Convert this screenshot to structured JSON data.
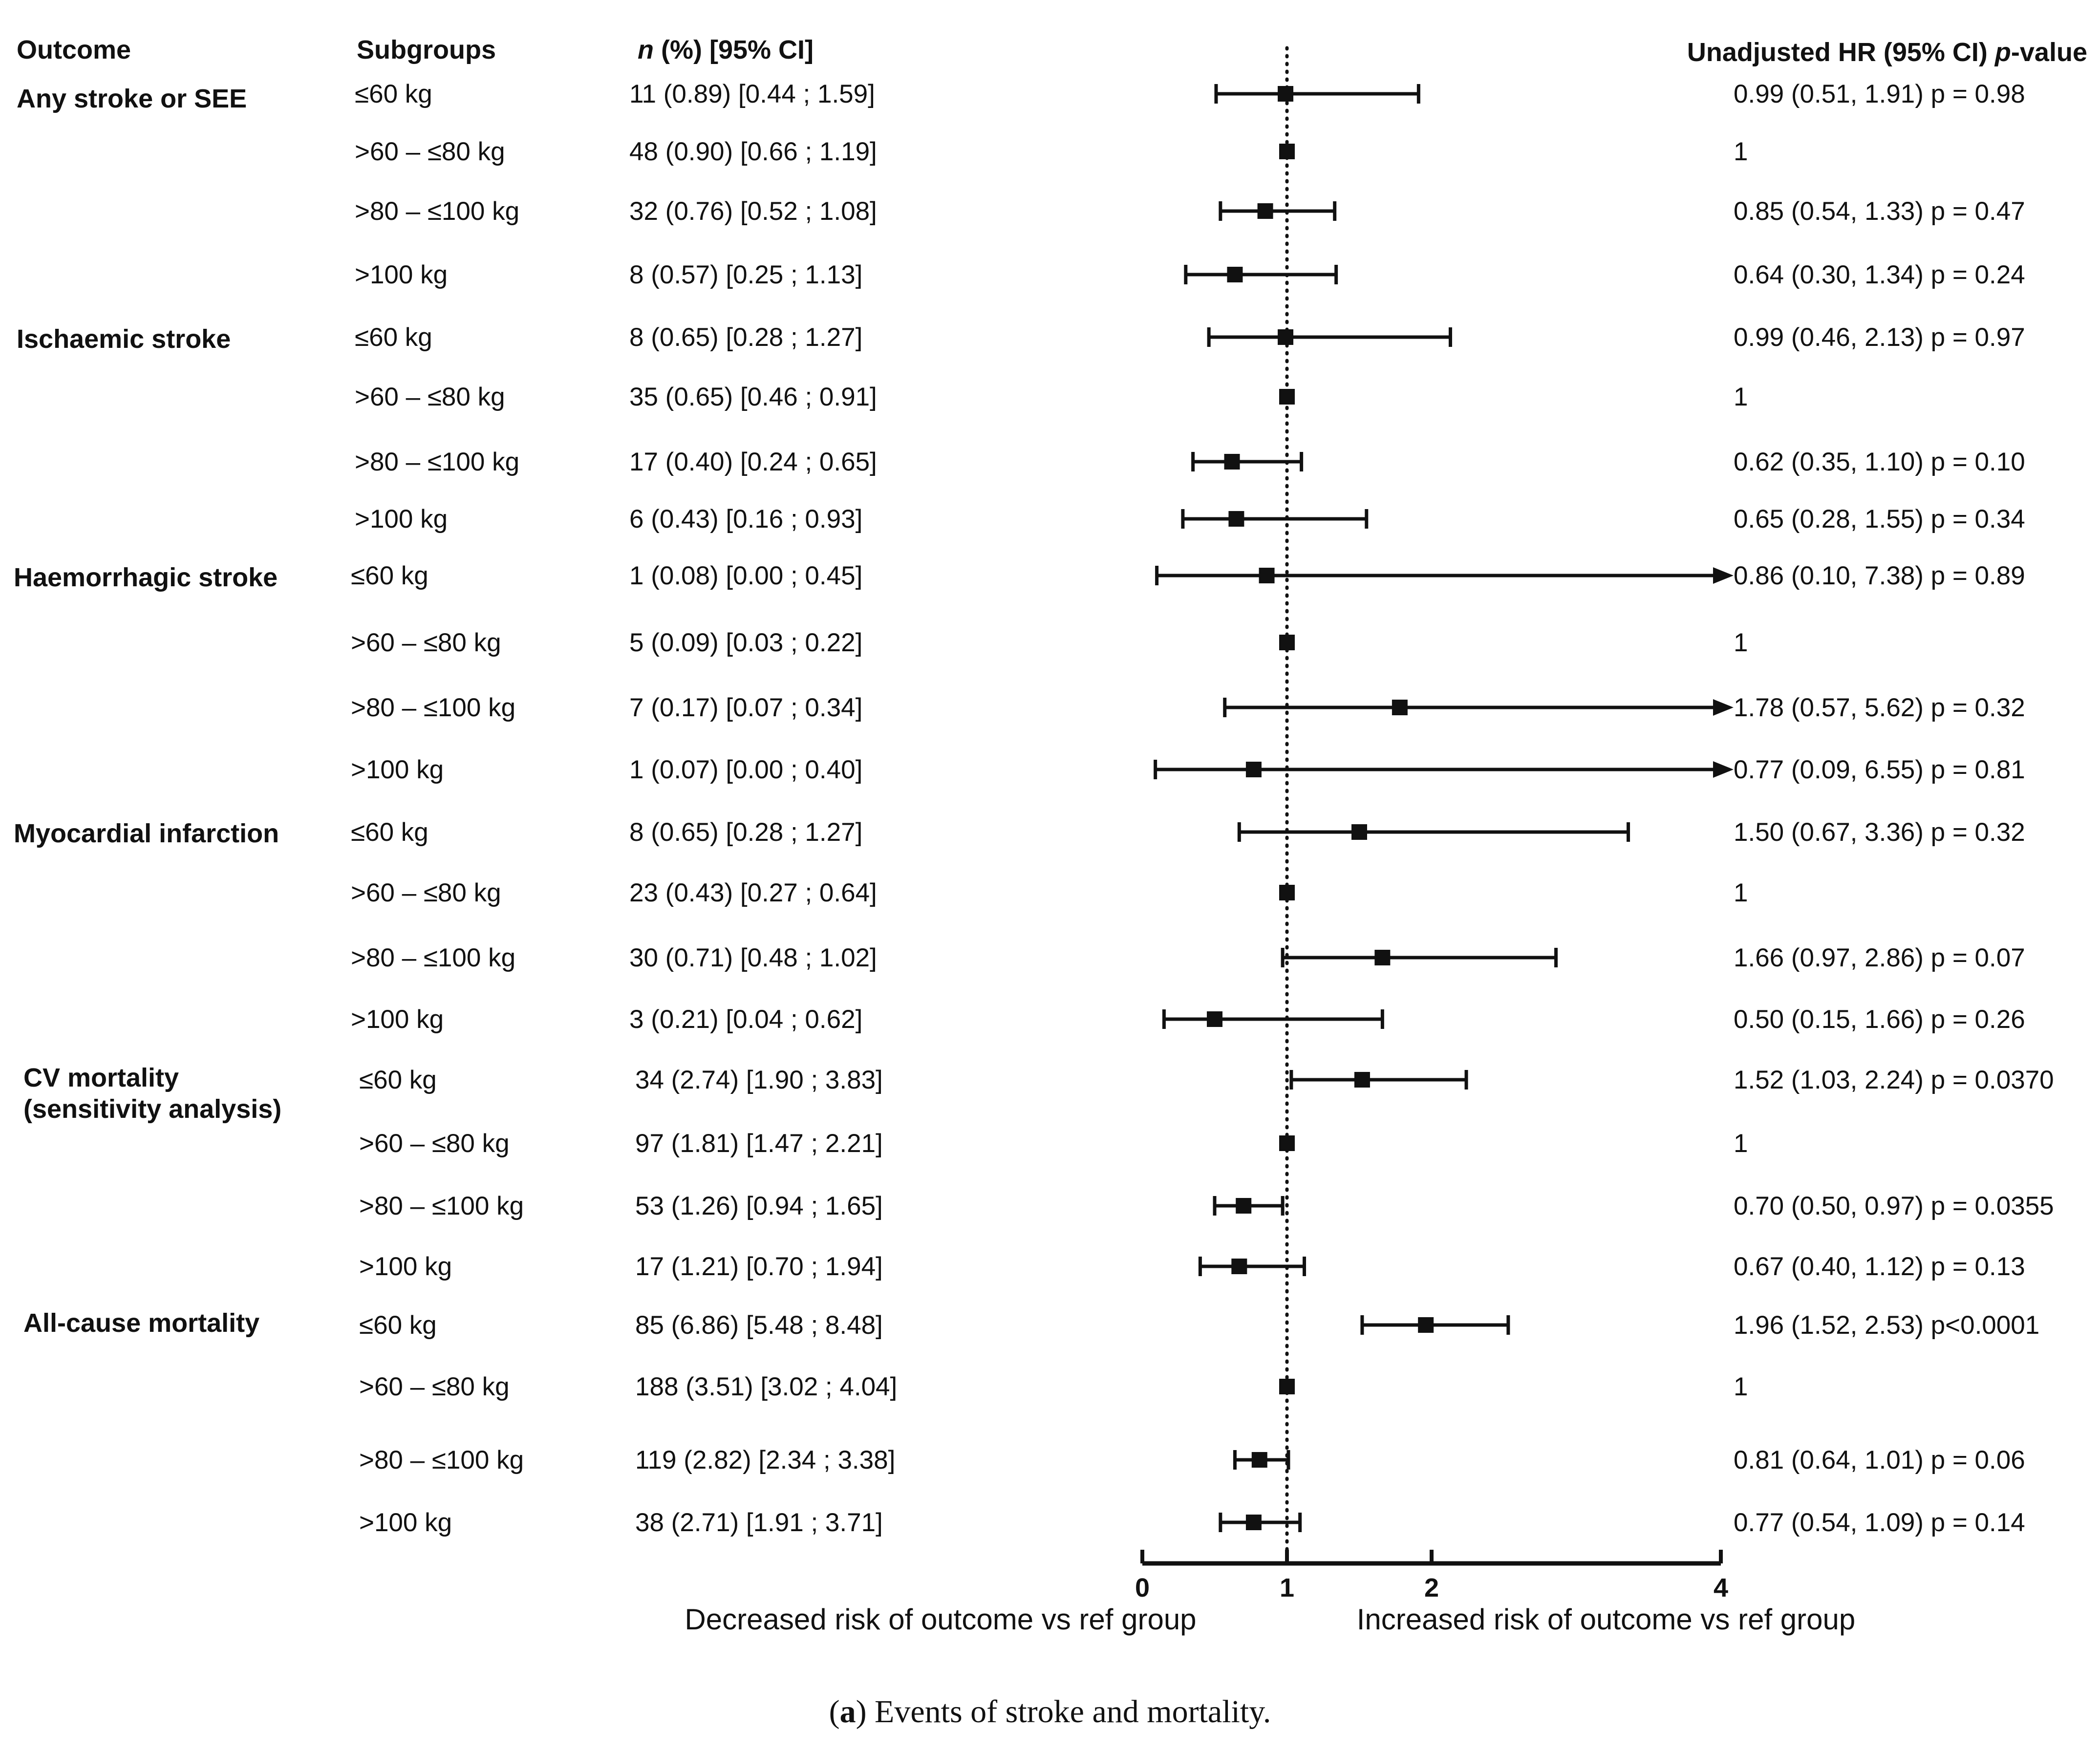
{
  "headers": {
    "outcome": "Outcome",
    "subgroups": "Subgroups",
    "n_italic": "n",
    "n_rest": " (%) [95% CI]",
    "hr": "Unadjusted HR (95%  CI) ",
    "p_italic": "p",
    "p_rest": "-value"
  },
  "chart_data": {
    "type": "forest",
    "reference_line": 1,
    "xlim": [
      0,
      4
    ],
    "x_ticks": [
      "0",
      "1",
      "2",
      "4"
    ],
    "xlabel_left": "Decreased risk of outcome vs ref group",
    "xlabel_right": "Increased risk of outcome vs ref group",
    "groups": [
      {
        "outcome_lines": [
          "Any stroke or SEE"
        ],
        "rows": [
          {
            "subgroup": "≤60 kg",
            "n_ci": "11 (0.89) [0.44 ; 1.59]",
            "hr_text": "0.99 (0.51, 1.91) p = 0.98",
            "hr": 0.99,
            "lo": 0.51,
            "hi": 1.91,
            "arrow": false
          },
          {
            "subgroup": ">60 – ≤80 kg",
            "n_ci": "48 (0.90) [0.66 ; 1.19]",
            "hr_text": "1",
            "hr": 1,
            "lo": 1,
            "hi": 1,
            "arrow": false
          },
          {
            "subgroup": ">80 – ≤100 kg",
            "n_ci": "32 (0.76) [0.52 ; 1.08]",
            "hr_text": "0.85 (0.54, 1.33) p = 0.47",
            "hr": 0.85,
            "lo": 0.54,
            "hi": 1.33,
            "arrow": false
          },
          {
            "subgroup": ">100 kg",
            "n_ci": "8 (0.57) [0.25 ; 1.13]",
            "hr_text": "0.64 (0.30, 1.34) p = 0.24",
            "hr": 0.64,
            "lo": 0.3,
            "hi": 1.34,
            "arrow": false
          }
        ]
      },
      {
        "outcome_lines": [
          "Ischaemic stroke"
        ],
        "rows": [
          {
            "subgroup": "≤60 kg",
            "n_ci": "8 (0.65) [0.28 ; 1.27]",
            "hr_text": "0.99 (0.46, 2.13) p = 0.97",
            "hr": 0.99,
            "lo": 0.46,
            "hi": 2.13,
            "arrow": false
          },
          {
            "subgroup": ">60 – ≤80 kg",
            "n_ci": "35 (0.65) [0.46 ; 0.91]",
            "hr_text": "1",
            "hr": 1,
            "lo": 1,
            "hi": 1,
            "arrow": false
          },
          {
            "subgroup": ">80 – ≤100 kg",
            "n_ci": "17 (0.40) [0.24 ; 0.65]",
            "hr_text": "0.62 (0.35, 1.10) p = 0.10",
            "hr": 0.62,
            "lo": 0.35,
            "hi": 1.1,
            "arrow": false
          },
          {
            "subgroup": ">100 kg",
            "n_ci": "6 (0.43) [0.16 ; 0.93]",
            "hr_text": "0.65 (0.28, 1.55) p = 0.34",
            "hr": 0.65,
            "lo": 0.28,
            "hi": 1.55,
            "arrow": false
          }
        ]
      },
      {
        "outcome_lines": [
          "Haemorrhagic stroke"
        ],
        "rows": [
          {
            "subgroup": "≤60 kg",
            "n_ci": "1 (0.08) [0.00 ; 0.45]",
            "hr_text": "0.86 (0.10, 7.38) p = 0.89",
            "hr": 0.86,
            "lo": 0.1,
            "hi": 7.38,
            "arrow": true
          },
          {
            "subgroup": ">60 – ≤80 kg",
            "n_ci": "5 (0.09) [0.03 ; 0.22]",
            "hr_text": "1",
            "hr": 1,
            "lo": 1,
            "hi": 1,
            "arrow": false
          },
          {
            "subgroup": ">80 – ≤100 kg",
            "n_ci": "7 (0.17) [0.07 ; 0.34]",
            "hr_text": "1.78 (0.57, 5.62) p = 0.32",
            "hr": 1.78,
            "lo": 0.57,
            "hi": 5.62,
            "arrow": true
          },
          {
            "subgroup": ">100 kg",
            "n_ci": "1 (0.07) [0.00 ; 0.40]",
            "hr_text": "0.77 (0.09, 6.55) p = 0.81",
            "hr": 0.77,
            "lo": 0.09,
            "hi": 6.55,
            "arrow": true
          }
        ]
      },
      {
        "outcome_lines": [
          "Myocardial infarction"
        ],
        "rows": [
          {
            "subgroup": "≤60 kg",
            "n_ci": "8 (0.65) [0.28 ; 1.27]",
            "hr_text": "1.50 (0.67, 3.36) p = 0.32",
            "hr": 1.5,
            "lo": 0.67,
            "hi": 3.36,
            "arrow": false
          },
          {
            "subgroup": ">60 – ≤80 kg",
            "n_ci": "23 (0.43) [0.27 ; 0.64]",
            "hr_text": "1",
            "hr": 1,
            "lo": 1,
            "hi": 1,
            "arrow": false
          },
          {
            "subgroup": ">80 – ≤100 kg",
            "n_ci": "30 (0.71) [0.48 ; 1.02]",
            "hr_text": "1.66 (0.97, 2.86) p = 0.07",
            "hr": 1.66,
            "lo": 0.97,
            "hi": 2.86,
            "arrow": false
          },
          {
            "subgroup": ">100 kg",
            "n_ci": "3 (0.21) [0.04 ; 0.62]",
            "hr_text": "0.50 (0.15, 1.66) p = 0.26",
            "hr": 0.5,
            "lo": 0.15,
            "hi": 1.66,
            "arrow": false
          }
        ]
      },
      {
        "outcome_lines": [
          "CV mortality",
          "(sensitivity analysis)"
        ],
        "rows": [
          {
            "subgroup": "≤60 kg",
            "n_ci": "34 (2.74) [1.90 ; 3.83]",
            "hr_text": "1.52 (1.03, 2.24) p = 0.0370",
            "hr": 1.52,
            "lo": 1.03,
            "hi": 2.24,
            "arrow": false
          },
          {
            "subgroup": ">60 – ≤80 kg",
            "n_ci": "97 (1.81) [1.47 ; 2.21]",
            "hr_text": "1",
            "hr": 1,
            "lo": 1,
            "hi": 1,
            "arrow": false
          },
          {
            "subgroup": ">80 – ≤100 kg",
            "n_ci": "53 (1.26) [0.94 ; 1.65]",
            "hr_text": "0.70 (0.50, 0.97) p = 0.0355",
            "hr": 0.7,
            "lo": 0.5,
            "hi": 0.97,
            "arrow": false
          },
          {
            "subgroup": ">100 kg",
            "n_ci": "17 (1.21) [0.70 ; 1.94]",
            "hr_text": "0.67 (0.40, 1.12) p = 0.13",
            "hr": 0.67,
            "lo": 0.4,
            "hi": 1.12,
            "arrow": false
          }
        ]
      },
      {
        "outcome_lines": [
          "All-cause mortality"
        ],
        "rows": [
          {
            "subgroup": "≤60 kg",
            "n_ci": "85 (6.86) [5.48 ; 8.48]",
            "hr_text": "1.96 (1.52, 2.53) p<0.0001",
            "hr": 1.96,
            "lo": 1.52,
            "hi": 2.53,
            "arrow": false
          },
          {
            "subgroup": ">60 – ≤80 kg",
            "n_ci": "188 (3.51) [3.02 ; 4.04]",
            "hr_text": "1",
            "hr": 1,
            "lo": 1,
            "hi": 1,
            "arrow": false
          },
          {
            "subgroup": ">80 – ≤100 kg",
            "n_ci": "119 (2.82) [2.34 ; 3.38]",
            "hr_text": "0.81 (0.64, 1.01) p = 0.06",
            "hr": 0.81,
            "lo": 0.64,
            "hi": 1.01,
            "arrow": false
          },
          {
            "subgroup": ">100 kg",
            "n_ci": "38 (2.71) [1.91 ; 3.71]",
            "hr_text": "0.77 (0.54, 1.09) p = 0.14",
            "hr": 0.77,
            "lo": 0.54,
            "hi": 1.09,
            "arrow": false
          }
        ]
      }
    ]
  },
  "caption": {
    "label": "a",
    "text": " Events of stroke and mortality."
  }
}
